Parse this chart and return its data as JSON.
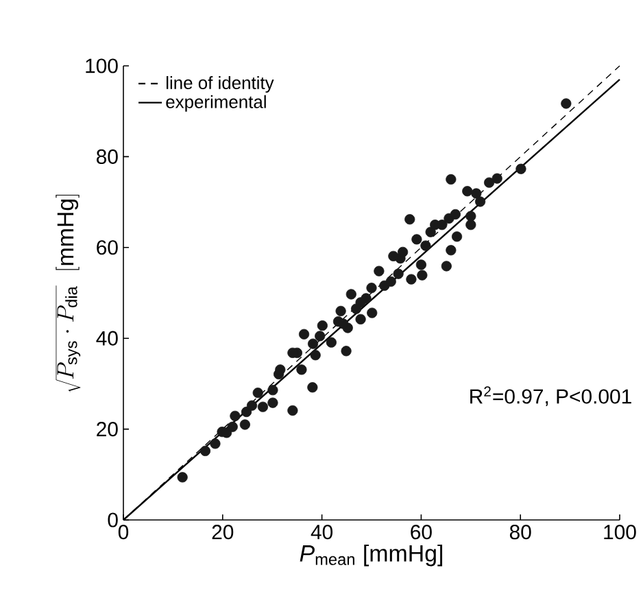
{
  "chart_data": {
    "type": "scatter",
    "xlabel": "*P*$_{mean}$ [mmHg]",
    "ylabel": "\\sqrt{P_{\\mathrm{sys}}\\cdot P_{\\mathrm{dia}}}\\;\\;[\\mathrm{mmHg}]",
    "xlim": [
      0,
      100
    ],
    "ylim": [
      0,
      100
    ],
    "xticks": [
      0,
      20,
      40,
      60,
      80,
      100
    ],
    "yticks": [
      0,
      20,
      40,
      60,
      80,
      100
    ],
    "grid": false,
    "legend": "top left",
    "annotations": [
      "R$^{2}$=0.97, P<0.001"
    ],
    "series": [
      {
        "type": "scatter",
        "color": "#1a1a1a",
        "marker": "circle",
        "x": [
          11.9,
          16.5,
          18.5,
          19.9,
          20.8,
          22.0,
          22.5,
          24.5,
          24.8,
          25.9,
          27.1,
          28.1,
          30.1,
          30.1,
          31.3,
          31.6,
          34.1,
          35.0,
          35.9,
          38.1,
          38.2,
          36.4,
          38.7,
          40.1,
          41.9,
          43.3,
          43.8,
          44.9,
          45.2,
          45.9,
          46.9,
          47.8,
          48.9,
          50.1,
          50.0,
          51.5,
          52.6,
          53.9,
          55.4,
          55.8,
          56.3,
          57.7,
          58.0,
          59.1,
          60.0,
          60.2,
          60.9,
          61.9,
          62.8,
          64.2,
          65.1,
          65.6,
          66.0,
          66.0,
          66.9,
          67.2,
          69.3,
          70.0,
          70.0,
          71.1,
          71.9,
          73.7,
          75.3,
          80.1,
          89.2,
          34.1,
          39.6,
          44.3,
          47.8,
          54.4
        ],
        "values": [
          9.4,
          15.2,
          16.8,
          19.4,
          19.2,
          20.5,
          22.9,
          21.0,
          23.8,
          25.2,
          28.0,
          24.9,
          25.8,
          28.6,
          32.1,
          33.1,
          24.1,
          36.8,
          33.1,
          29.2,
          38.8,
          40.9,
          36.3,
          42.8,
          39.1,
          43.7,
          46.0,
          37.2,
          42.3,
          49.7,
          46.5,
          44.2,
          48.8,
          45.6,
          51.1,
          54.8,
          51.6,
          52.5,
          54.2,
          57.6,
          59.0,
          66.2,
          53.0,
          61.8,
          56.2,
          53.9,
          60.4,
          63.4,
          65.0,
          65.0,
          55.9,
          66.4,
          59.4,
          75.0,
          67.3,
          62.4,
          72.4,
          65.0,
          66.9,
          71.9,
          70.1,
          74.3,
          75.2,
          77.3,
          91.7,
          36.8,
          40.5,
          43.2,
          47.9,
          58.1
        ]
      },
      {
        "type": "line",
        "name": "line of identity",
        "color": "#000000",
        "line_style": "dashed",
        "marker": "none",
        "x": [
          0,
          100
        ],
        "values": [
          0,
          100
        ]
      },
      {
        "type": "line",
        "name": "experimental",
        "color": "#000000",
        "line_style": "solid",
        "marker": "none",
        "x": [
          0,
          100
        ],
        "values": [
          0,
          97
        ]
      }
    ]
  }
}
